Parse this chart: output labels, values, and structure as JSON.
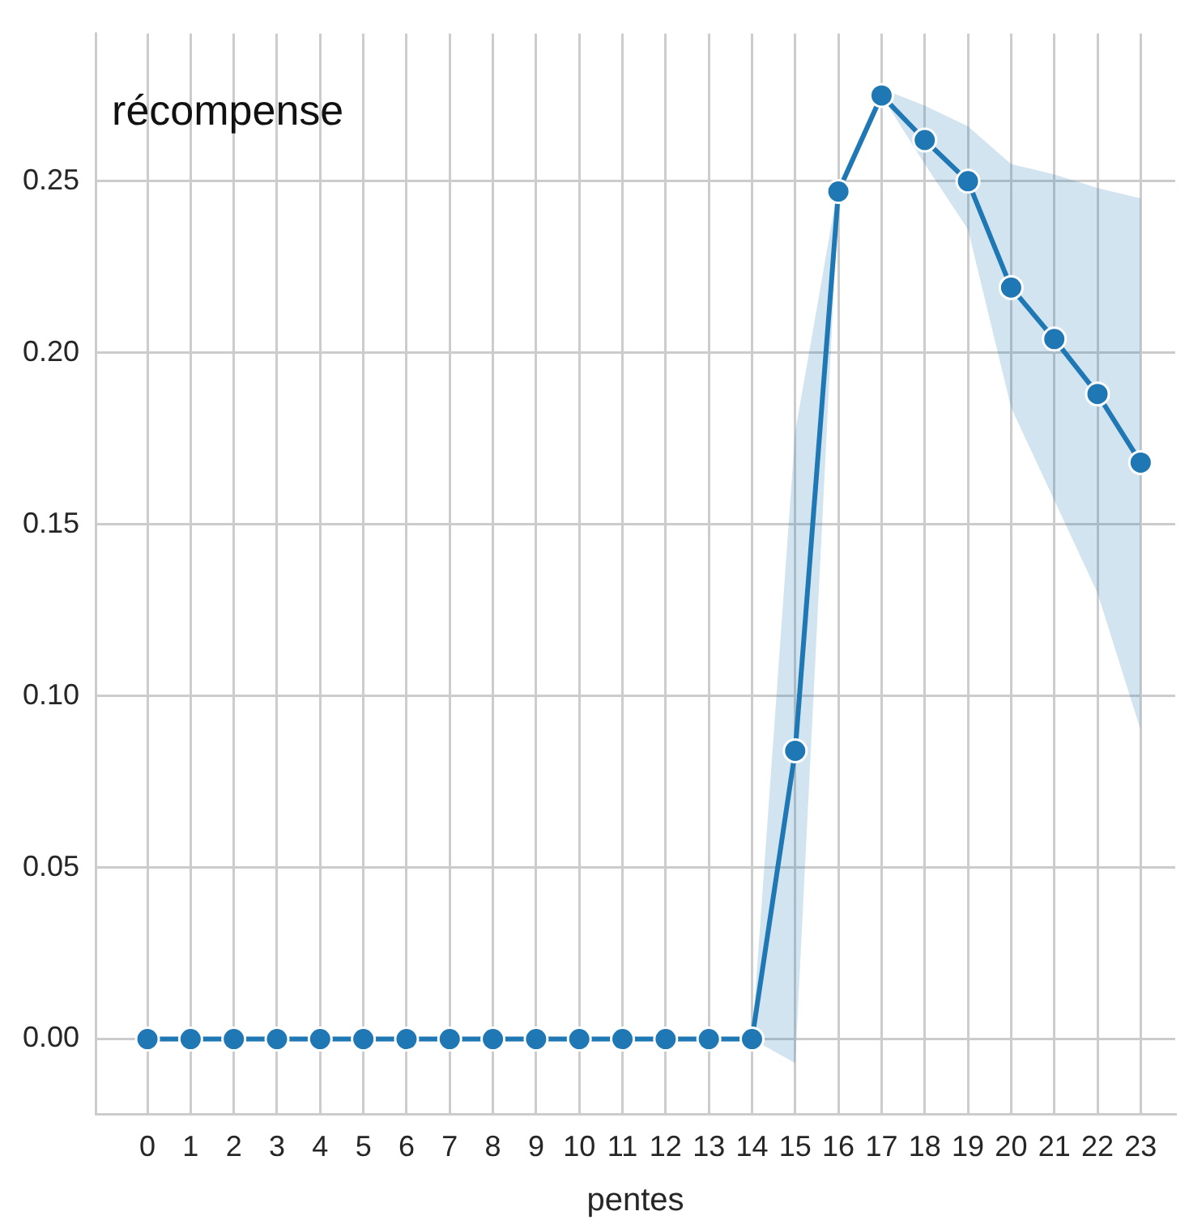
{
  "chart_data": {
    "type": "line",
    "title": "récompense",
    "xlabel": "pentes",
    "x": [
      0,
      1,
      2,
      3,
      4,
      5,
      6,
      7,
      8,
      9,
      10,
      11,
      12,
      13,
      14,
      15,
      16,
      17,
      18,
      19,
      20,
      21,
      22,
      23
    ],
    "xlim": [
      -1.2,
      23.8
    ],
    "xticks": [
      0,
      1,
      2,
      3,
      4,
      5,
      6,
      7,
      8,
      9,
      10,
      11,
      12,
      13,
      14,
      15,
      16,
      17,
      18,
      19,
      20,
      21,
      22,
      23
    ],
    "ylim": [
      -0.022,
      0.293
    ],
    "yticks": [
      {
        "value": 0,
        "label": "0.00"
      },
      {
        "value": 0.05,
        "label": "0.05"
      },
      {
        "value": 0.1,
        "label": "0.10"
      },
      {
        "value": 0.15,
        "label": "0.15"
      },
      {
        "value": 0.2,
        "label": "0.20"
      },
      {
        "value": 0.25,
        "label": "0.25"
      }
    ],
    "series": [
      {
        "color": "#1f77b4",
        "values": [
          0,
          0,
          0,
          0,
          0,
          0,
          0,
          0,
          0,
          0,
          0,
          0,
          0,
          0,
          0,
          0.084,
          0.247,
          0.275,
          0.262,
          0.25,
          0.219,
          0.204,
          0.188,
          0.168
        ],
        "lower": [
          0,
          0,
          0,
          0,
          0,
          0,
          0,
          0,
          0,
          0,
          0,
          0,
          0,
          0,
          0,
          -0.007,
          0.245,
          0.275,
          0.255,
          0.236,
          0.184,
          0.157,
          0.13,
          0.09
        ],
        "upper": [
          0,
          0,
          0,
          0,
          0,
          0,
          0,
          0,
          0,
          0,
          0,
          0,
          0,
          0,
          0,
          0.177,
          0.249,
          0.277,
          0.272,
          0.266,
          0.255,
          0.252,
          0.248,
          0.245
        ]
      }
    ],
    "grid": true,
    "marker": "circle",
    "line_style": "solid",
    "legend": false
  }
}
